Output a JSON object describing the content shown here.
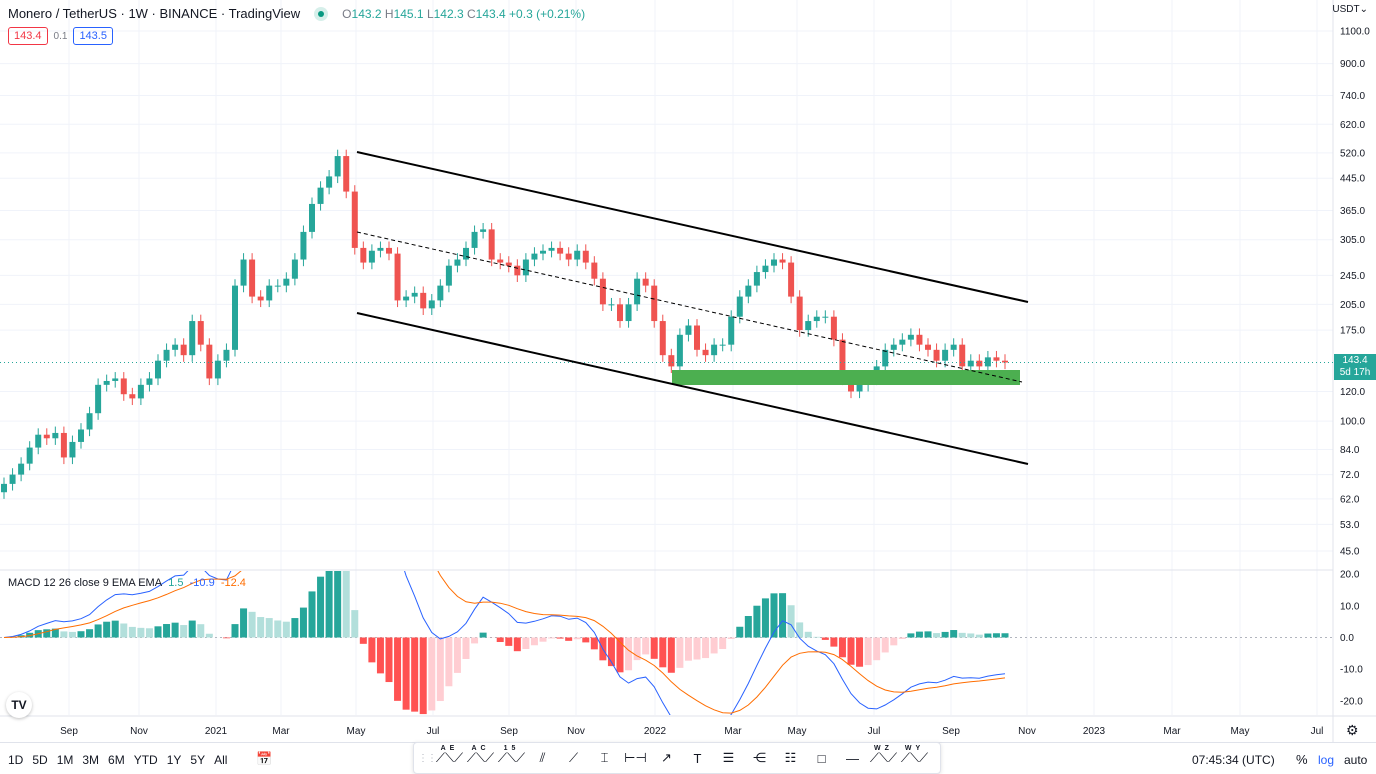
{
  "header": {
    "symbol": "Monero / TetherUS",
    "interval": "1W",
    "exchange": "BINANCE",
    "source": "TradingView",
    "separator": " · ",
    "ohlc": {
      "o_label": "O",
      "o": "143.2",
      "h_label": "H",
      "h": "145.1",
      "l_label": "L",
      "l": "142.3",
      "c_label": "C",
      "c": "143.4",
      "change": "+0.3 (+0.21%)"
    },
    "sell_price": "143.4",
    "spread": "0.1",
    "buy_price": "143.5",
    "currency": "USDT"
  },
  "price_axis": {
    "ticks": [
      "1100.0",
      "900.0",
      "740.0",
      "620.0",
      "520.0",
      "445.0",
      "365.0",
      "305.0",
      "245.0",
      "205.0",
      "175.0",
      "120.0",
      "100.0",
      "84.0",
      "72.0",
      "62.0",
      "53.0",
      "45.0"
    ],
    "current_price": "143.4",
    "countdown": "5d 17h",
    "scale": "log"
  },
  "macd": {
    "label": "MACD 12 26 close 9 EMA EMA",
    "hist": "1.5",
    "macd": "-10.9",
    "signal": "-12.4",
    "ticks": [
      "20.0",
      "10.0",
      "0.0",
      "-10.0",
      "-20.0"
    ]
  },
  "time_axis": {
    "labels": [
      "Sep",
      "Nov",
      "2021",
      "Mar",
      "May",
      "Jul",
      "Sep",
      "Nov",
      "2022",
      "Mar",
      "May",
      "Jul",
      "Sep",
      "Nov",
      "2023",
      "Mar",
      "May",
      "Jul"
    ]
  },
  "colors": {
    "up": "#26a69a",
    "down": "#ef5350",
    "macd": "#2962ff",
    "signal": "#ff6d00",
    "hist_up": "#26a69a",
    "hist_up_weak": "#b2dfdb",
    "hist_down": "#ff5252",
    "hist_down_weak": "#ffcdd2",
    "support_zone": "#4caf50"
  },
  "chart_data": {
    "type": "candlestick",
    "period": "1W",
    "scale": "log",
    "ylim": [
      45,
      1100
    ],
    "close": [
      68,
      72,
      77,
      85,
      92,
      90,
      93,
      80,
      88,
      95,
      105,
      125,
      128,
      130,
      118,
      115,
      125,
      130,
      145,
      155,
      160,
      150,
      185,
      160,
      130,
      145,
      155,
      230,
      270,
      215,
      210,
      230,
      230,
      240,
      270,
      320,
      380,
      420,
      450,
      510,
      410,
      290,
      265,
      285,
      290,
      280,
      210,
      215,
      220,
      200,
      210,
      230,
      260,
      270,
      290,
      320,
      325,
      270,
      265,
      260,
      245,
      270,
      280,
      285,
      290,
      280,
      270,
      285,
      265,
      240,
      205,
      205,
      185,
      205,
      240,
      230,
      185,
      150,
      140,
      170,
      180,
      155,
      150,
      160,
      160,
      190,
      215,
      230,
      250,
      260,
      270,
      265,
      215,
      175,
      185,
      190,
      190,
      165,
      130,
      120,
      125,
      130,
      140,
      155,
      160,
      165,
      170,
      160,
      155,
      145,
      155,
      160,
      140,
      145,
      140,
      148,
      145,
      143.4
    ],
    "drawings": [
      "descending channel",
      "dashed midline",
      "support zone"
    ]
  },
  "bottom_bar": {
    "ranges": [
      "1D",
      "5D",
      "1M",
      "3M",
      "6M",
      "YTD",
      "1Y",
      "5Y",
      "All"
    ],
    "time": "07:45:34 (UTC)",
    "percent": "%",
    "log": "log",
    "auto": "auto"
  },
  "drawing_toolbar": {
    "tools": [
      {
        "name": "abcd-pattern",
        "sup": "AE"
      },
      {
        "name": "abc-pattern",
        "sup": "AC"
      },
      {
        "name": "elliott-wave",
        "sup": "15"
      },
      {
        "name": "parallel-lines",
        "sup": ""
      },
      {
        "name": "trend-line",
        "sup": ""
      },
      {
        "name": "price-range",
        "sup": ""
      },
      {
        "name": "date-range",
        "sup": ""
      },
      {
        "name": "arrow",
        "sup": ""
      },
      {
        "name": "text",
        "sup": ""
      },
      {
        "name": "horizontal-lines",
        "sup": ""
      },
      {
        "name": "fib-fan",
        "sup": ""
      },
      {
        "name": "fib-retracement",
        "sup": ""
      },
      {
        "name": "rectangle",
        "sup": ""
      },
      {
        "name": "horizontal-ray",
        "sup": ""
      },
      {
        "name": "wxyxz-pattern",
        "sup": "WZ"
      },
      {
        "name": "wxy-pattern",
        "sup": "WY"
      }
    ]
  }
}
